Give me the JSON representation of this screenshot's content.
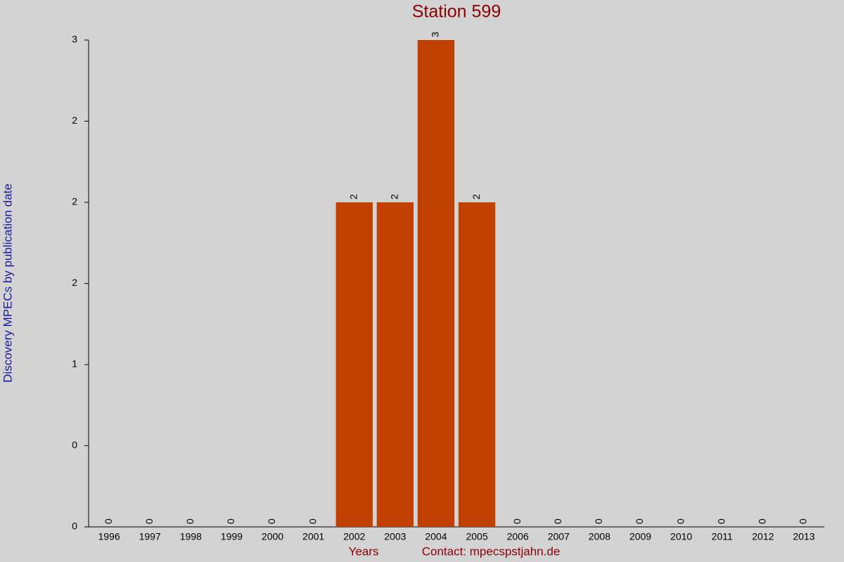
{
  "chart_data": {
    "type": "bar",
    "title": "Station 599",
    "y_label": "Discovery MPECs by publication date",
    "x_label": "Years",
    "annotation": "Contact: mpecspstjahn.de",
    "categories": [
      "1996",
      "1997",
      "1998",
      "1999",
      "2000",
      "2001",
      "2002",
      "2003",
      "2004",
      "2005",
      "2006",
      "2007",
      "2008",
      "2009",
      "2010",
      "2011",
      "2012",
      "2013"
    ],
    "values": [
      0,
      0,
      0,
      0,
      0,
      0,
      2,
      2,
      3,
      2,
      0,
      0,
      0,
      0,
      0,
      0,
      0,
      0
    ],
    "color": "#c04000",
    "ylim": [
      0,
      3
    ],
    "yticks": [
      0,
      {
        "value": 0.5,
        "label": "0"
      },
      1,
      {
        "value": 1.5,
        "label": "2"
      },
      2,
      {
        "value": 2.5,
        "label": "2"
      },
      3
    ]
  }
}
